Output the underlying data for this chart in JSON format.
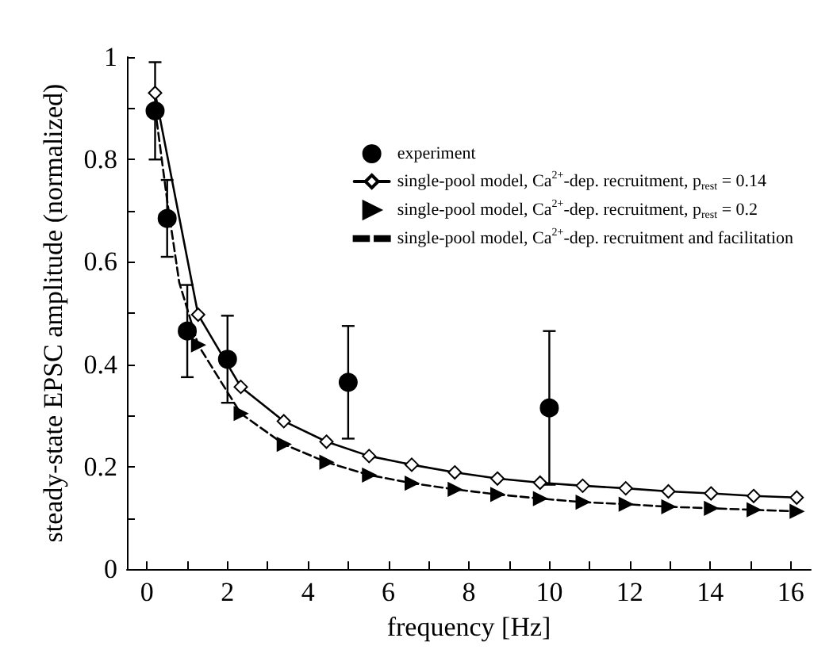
{
  "chart_data": {
    "type": "line",
    "xlabel": "frequency [Hz]",
    "ylabel": "steady-state EPSC amplitude (normalized)",
    "xlim": [
      -0.5,
      16.5
    ],
    "ylim": [
      0,
      1
    ],
    "xticks": [
      0,
      {
        "value": 1,
        "label": null
      },
      2,
      {
        "value": 3,
        "label": null
      },
      4,
      {
        "value": 5,
        "label": null
      },
      6,
      {
        "value": 7,
        "label": null
      },
      8,
      {
        "value": 9,
        "label": null
      },
      10,
      {
        "value": 11,
        "label": null
      },
      12,
      {
        "value": 13,
        "label": null
      },
      14,
      {
        "value": 15,
        "label": null
      },
      16
    ],
    "yticks": [
      0,
      {
        "value": 0.1,
        "label": null
      },
      0.2,
      {
        "value": 0.3,
        "label": null
      },
      0.4,
      {
        "value": 0.5,
        "label": null
      },
      0.6,
      {
        "value": 0.7,
        "label": null
      },
      0.8,
      {
        "value": 0.9,
        "label": null
      },
      1
    ],
    "grid": false,
    "legend": "top right",
    "series": [
      {
        "name": "experiment",
        "type": "scatter",
        "marker": "circle",
        "color": "#000000",
        "x": [
          0.2,
          0.5,
          1,
          2,
          5,
          10
        ],
        "values": [
          0.895,
          0.685,
          0.465,
          0.41,
          0.365,
          0.315
        ],
        "errors": [
          [
            0.8,
            0.99
          ],
          [
            0.61,
            0.76
          ],
          [
            0.375,
            0.555
          ],
          [
            0.325,
            0.495
          ],
          [
            0.255,
            0.475
          ],
          [
            0.165,
            0.465
          ]
        ]
      },
      {
        "name": "single-pool model, Ca$^{2+}$-dep. recruitment, p$_{rest}$ = 0.14",
        "type": "line",
        "marker": "diamond",
        "line_style": "solid",
        "color": "#000000",
        "x": [
          0.2,
          1.27,
          2.33,
          3.4,
          4.46,
          5.52,
          6.58,
          7.65,
          8.71,
          9.77,
          10.83,
          11.9,
          12.96,
          14.02,
          15.08,
          16.15
        ],
        "values": [
          0.93,
          0.497,
          0.356,
          0.289,
          0.249,
          0.221,
          0.204,
          0.189,
          0.177,
          0.169,
          0.163,
          0.158,
          0.152,
          0.148,
          0.143,
          0.14
        ]
      },
      {
        "name": "single-pool model, Ca$^{2+}$-dep. recruitment, p$_{rest}$ = 0.2",
        "type": "scatter",
        "marker": "triangle",
        "color": "#000000",
        "x": [
          1.27,
          2.33,
          3.4,
          4.46,
          5.52,
          6.58,
          7.65,
          8.71,
          9.77,
          10.83,
          11.9,
          12.96,
          14.02,
          15.08,
          16.15
        ],
        "values": [
          0.438,
          0.304,
          0.244,
          0.209,
          0.184,
          0.168,
          0.156,
          0.146,
          0.138,
          0.131,
          0.127,
          0.122,
          0.119,
          0.116,
          0.113
        ]
      },
      {
        "name": "single-pool model, Ca$^{2+}$-dep. recruitment and facilitation",
        "type": "line",
        "marker": "none",
        "line_style": "dashed",
        "color": "#000000",
        "x": [
          0.2,
          0.5,
          0.8,
          1.27,
          2.33,
          3.4,
          4.46,
          5.52,
          6.58,
          7.65,
          8.71,
          9.77,
          10.83,
          11.9,
          12.96,
          14.02,
          15.08,
          16.15
        ],
        "values": [
          0.9,
          0.72,
          0.56,
          0.438,
          0.304,
          0.244,
          0.209,
          0.184,
          0.168,
          0.156,
          0.146,
          0.138,
          0.131,
          0.127,
          0.122,
          0.119,
          0.116,
          0.113
        ]
      }
    ]
  }
}
